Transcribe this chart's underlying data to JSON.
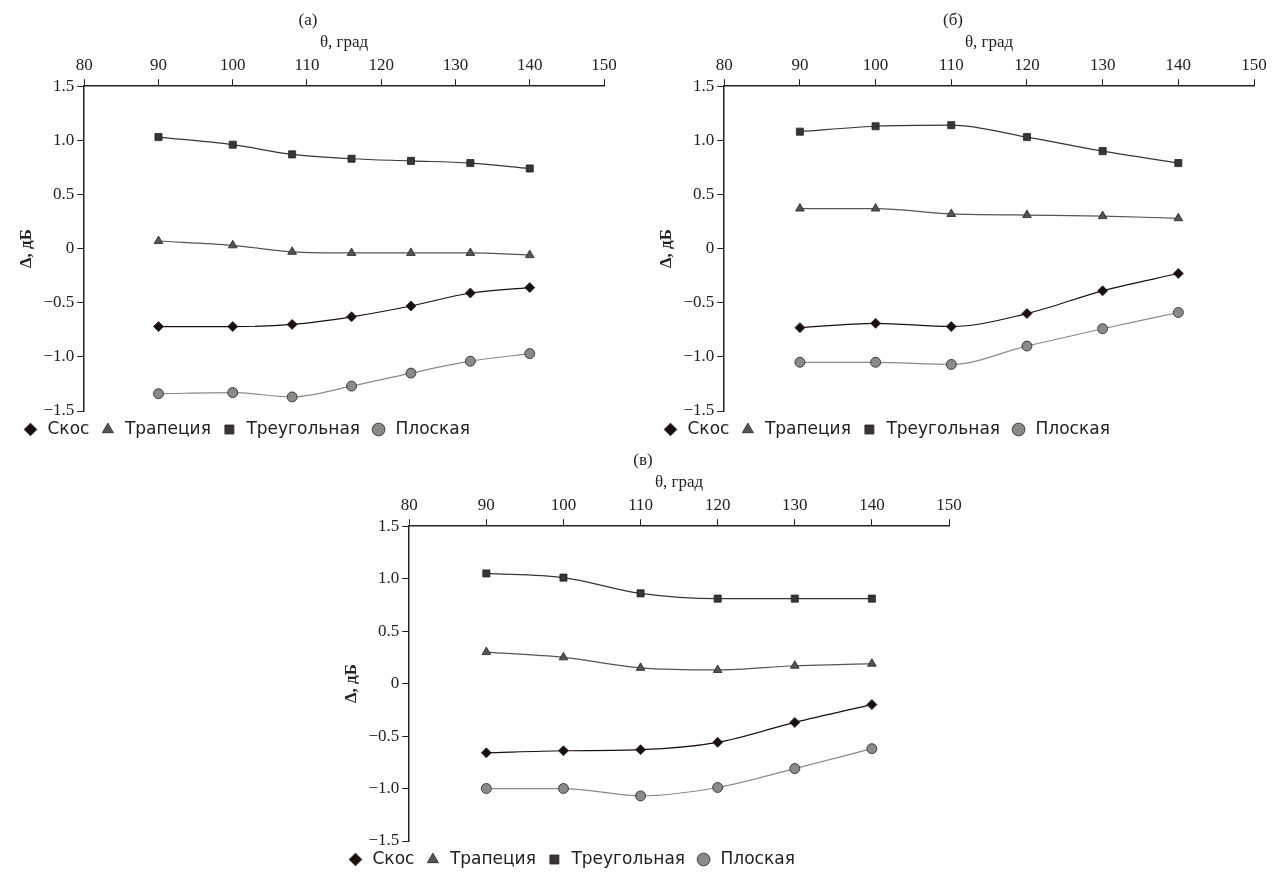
{
  "chart_data": [
    {
      "type": "line",
      "title": "(а)",
      "xlabel": "θ, град",
      "ylabel": "Δ, дБ",
      "xlim": [
        80,
        150
      ],
      "xticks": [
        80,
        90,
        100,
        110,
        120,
        130,
        140,
        150
      ],
      "ylim": [
        -1.5,
        1.5
      ],
      "yticks": [
        {
          "value": 1.5,
          "label": "1.5"
        },
        {
          "value": 1,
          "label": "1.0"
        },
        {
          "value": 0.5,
          "label": "0.5"
        },
        {
          "value": 0,
          "label": "0"
        },
        {
          "value": -0.5,
          "label": "−0.5"
        },
        {
          "value": -1,
          "label": "−1.0"
        },
        {
          "value": -1.5,
          "label": "−1.5"
        }
      ],
      "grid": false,
      "legend": "bottom",
      "x": [
        90,
        100,
        108,
        116,
        124,
        132,
        140
      ],
      "series": [
        {
          "name": "Скос",
          "color": "#1a0f0d",
          "marker": "diamond",
          "values": [
            -0.72,
            -0.72,
            -0.7,
            -0.63,
            -0.53,
            -0.41,
            -0.36
          ]
        },
        {
          "name": "Трапеция",
          "color": "#55554f",
          "marker": "triangle",
          "values": [
            0.07,
            0.03,
            -0.03,
            -0.04,
            -0.04,
            -0.04,
            -0.06
          ]
        },
        {
          "name": "Треугольная",
          "color": "#3a3533",
          "marker": "square",
          "values": [
            1.03,
            0.96,
            0.87,
            0.83,
            0.81,
            0.79,
            0.74
          ]
        },
        {
          "name": "Плоская",
          "color": "#8a8a86",
          "marker": "circle",
          "values": [
            -1.34,
            -1.33,
            -1.37,
            -1.27,
            -1.15,
            -1.04,
            -0.97
          ]
        }
      ]
    },
    {
      "type": "line",
      "title": "(б)",
      "xlabel": "θ, град",
      "ylabel": "Δ, дБ",
      "xlim": [
        80,
        150
      ],
      "xticks": [
        80,
        90,
        100,
        110,
        120,
        130,
        140,
        150
      ],
      "ylim": [
        -1.5,
        1.5
      ],
      "yticks": [
        {
          "value": 1.5,
          "label": "1.5"
        },
        {
          "value": 1,
          "label": "1.0"
        },
        {
          "value": 0.5,
          "label": "0.5"
        },
        {
          "value": 0,
          "label": "0"
        },
        {
          "value": -0.5,
          "label": "−0.5"
        },
        {
          "value": -1,
          "label": "−1.0"
        },
        {
          "value": -1.5,
          "label": "−1.5"
        }
      ],
      "grid": false,
      "legend": "bottom",
      "x": [
        90,
        100,
        110,
        120,
        130,
        140
      ],
      "series": [
        {
          "name": "Скос",
          "color": "#1a0f0d",
          "marker": "diamond",
          "values": [
            -0.73,
            -0.69,
            -0.72,
            -0.6,
            -0.39,
            -0.23
          ]
        },
        {
          "name": "Трапеция",
          "color": "#55554f",
          "marker": "triangle",
          "values": [
            0.37,
            0.37,
            0.32,
            0.31,
            0.3,
            0.28
          ]
        },
        {
          "name": "Треугольная",
          "color": "#3a3533",
          "marker": "square",
          "values": [
            1.08,
            1.13,
            1.14,
            1.03,
            0.9,
            0.79
          ]
        },
        {
          "name": "Плоская",
          "color": "#8a8a86",
          "marker": "circle",
          "values": [
            -1.05,
            -1.05,
            -1.07,
            -0.9,
            -0.74,
            -0.59
          ]
        }
      ]
    },
    {
      "type": "line",
      "title": "(в)",
      "xlabel": "θ, град",
      "ylabel": "Δ, дБ",
      "xlim": [
        80,
        150
      ],
      "xticks": [
        80,
        90,
        100,
        110,
        120,
        130,
        140,
        150
      ],
      "ylim": [
        -1.5,
        1.5
      ],
      "yticks": [
        {
          "value": 1.5,
          "label": "1.5"
        },
        {
          "value": 1,
          "label": "1.0"
        },
        {
          "value": 0.5,
          "label": "0.5"
        },
        {
          "value": 0,
          "label": "0"
        },
        {
          "value": -0.5,
          "label": "−0.5"
        },
        {
          "value": -1,
          "label": "−1.0"
        },
        {
          "value": -1.5,
          "label": "−1.5"
        }
      ],
      "grid": false,
      "legend": "bottom",
      "x": [
        90,
        100,
        110,
        120,
        130,
        140
      ],
      "series": [
        {
          "name": "Скос",
          "color": "#1a0f0d",
          "marker": "diamond",
          "values": [
            -0.66,
            -0.64,
            -0.63,
            -0.56,
            -0.37,
            -0.2
          ]
        },
        {
          "name": "Трапеция",
          "color": "#55554f",
          "marker": "triangle",
          "values": [
            0.3,
            0.25,
            0.15,
            0.13,
            0.17,
            0.19
          ]
        },
        {
          "name": "Треугольная",
          "color": "#3a3533",
          "marker": "square",
          "values": [
            1.05,
            1.01,
            0.86,
            0.81,
            0.81,
            0.81
          ]
        },
        {
          "name": "Плоская",
          "color": "#8a8a86",
          "marker": "circle",
          "values": [
            -1.0,
            -1.0,
            -1.07,
            -0.99,
            -0.81,
            -0.62
          ]
        }
      ]
    }
  ]
}
